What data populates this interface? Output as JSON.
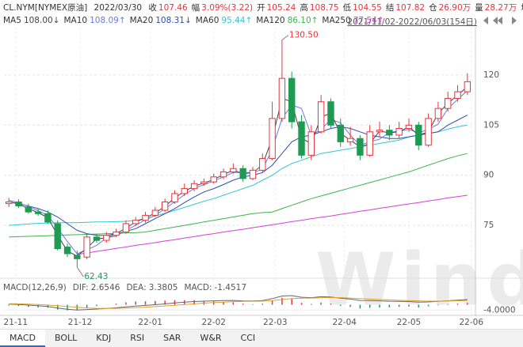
{
  "header": {
    "symbol": "CL.NYM[NYMEX原油]",
    "date": "2022/03/30",
    "quotes": [
      {
        "label": "收",
        "value": "107.46"
      },
      {
        "label": "幅",
        "value": "3.09%(3.22)"
      },
      {
        "label": "开",
        "value": "105.24"
      },
      {
        "label": "高",
        "value": "108.75"
      },
      {
        "label": "低",
        "value": "104.55"
      },
      {
        "label": "结",
        "value": "107.82"
      },
      {
        "label": "仓",
        "value": "26.90万"
      },
      {
        "label": "量",
        "value": "28.27万"
      },
      {
        "label": "增",
        "value": ""
      }
    ],
    "range": "2021/11/02-2022/06/03(154日)"
  },
  "chart_data": {
    "type": "candlestick",
    "watermark": "Wind",
    "xlim": [
      -0.5,
      47.5
    ],
    "xticks": [
      {
        "value": 0.7,
        "label": "21-11"
      },
      {
        "value": 7.3,
        "label": "21-12"
      },
      {
        "value": 14.5,
        "label": "22-01"
      },
      {
        "value": 21.0,
        "label": "22-02"
      },
      {
        "value": 27.3,
        "label": "22-03"
      },
      {
        "value": 34.4,
        "label": "22-04"
      },
      {
        "value": 41.0,
        "label": "22-05"
      },
      {
        "value": 47.4,
        "label": "22-06"
      }
    ],
    "ylim": [
      62,
      133
    ],
    "yticks": [
      75,
      90,
      105,
      120
    ],
    "grid": true,
    "up_color": "#e8343c",
    "down_color": "#1f9a52",
    "open": [
      81.5,
      82,
      80.5,
      79,
      78.5,
      75.5,
      68.5,
      66,
      65.5,
      71.5,
      70.5,
      72,
      73,
      75.5,
      76.5,
      78,
      79.5,
      82,
      84.5,
      86,
      87.5,
      88,
      89.5,
      91,
      92,
      89,
      91.5,
      95,
      107,
      119,
      106,
      96,
      103,
      112,
      105,
      100,
      101,
      96,
      103,
      103.5,
      102,
      104,
      105,
      99,
      107,
      110,
      113,
      115
    ],
    "high": [
      83.2,
      82.8,
      81.5,
      80,
      79.5,
      76.5,
      69.5,
      67.5,
      72.5,
      72.5,
      73,
      74,
      76.5,
      77.5,
      79,
      80.5,
      83,
      85.5,
      87.5,
      88.5,
      89,
      90.5,
      92,
      93.5,
      93,
      92.5,
      96.5,
      112,
      130.5,
      121,
      108,
      105,
      114,
      113,
      107,
      104.5,
      102,
      105,
      106,
      105,
      106,
      107,
      106,
      108.5,
      112,
      115,
      117,
      120.5
    ],
    "low": [
      80.5,
      80.2,
      78.5,
      77.8,
      75.5,
      67.5,
      65.5,
      62.43,
      64.8,
      69.8,
      69.8,
      71.5,
      72.5,
      74.8,
      75.8,
      77.5,
      79,
      81.5,
      83.8,
      85.2,
      86.8,
      87.5,
      88.8,
      90.5,
      88,
      88.5,
      91,
      94.5,
      106,
      104,
      95,
      94.5,
      102.5,
      104,
      98.5,
      98.8,
      94.5,
      95.5,
      101.5,
      100.5,
      101,
      103,
      97.5,
      98.5,
      106,
      109,
      112,
      114
    ],
    "close": [
      82,
      80.8,
      79,
      78.5,
      76,
      68,
      66.5,
      65,
      71.5,
      70.5,
      72,
      73,
      75.5,
      76.5,
      78,
      79.5,
      82,
      84.5,
      86,
      87.5,
      88,
      89.5,
      91,
      92,
      89,
      91.5,
      95,
      107,
      119,
      106,
      96,
      103,
      112,
      105,
      100,
      101,
      96,
      103,
      103.5,
      102,
      104,
      105,
      99,
      107,
      110,
      113,
      115,
      118
    ],
    "annotations": [
      {
        "label": "130.50",
        "value": 130.5,
        "x": 28
      },
      {
        "label": "62.43",
        "value": 62.43,
        "x": 7
      }
    ],
    "series": [
      {
        "name": "MA5",
        "label": "108.00↓",
        "color": "#444444",
        "values": [
          82,
          81.4,
          80,
          78.8,
          77.3,
          72,
          67.3,
          65.8,
          68.2,
          71,
          71.2,
          72.5,
          74.2,
          76,
          77.2,
          78.7,
          80.7,
          83.2,
          85.2,
          86.7,
          87.7,
          88.7,
          90.2,
          91.5,
          90.5,
          90.7,
          93.2,
          101,
          113,
          112,
          101,
          99.5,
          107.5,
          108.5,
          102.5,
          100.5,
          98.5,
          99.5,
          103.2,
          102.7,
          103,
          104.5,
          102,
          103,
          108.5,
          111.5,
          114,
          116.5
        ]
      },
      {
        "name": "MA10",
        "label": "108.09↑",
        "color": "#6b7be0",
        "values": [
          82.5,
          81.8,
          80.6,
          79.4,
          77.9,
          74.2,
          70.2,
          66.5,
          67.7,
          69,
          71.3,
          71.8,
          73.5,
          75,
          76.7,
          78,
          80,
          82,
          84.2,
          86,
          87.2,
          88.3,
          89.5,
          90.8,
          90.8,
          90.8,
          91.8,
          97.8,
          107,
          111,
          110,
          102,
          103.7,
          106.7,
          105.7,
          102,
          99,
          100,
          100.8,
          102.8,
          103.2,
          103.7,
          102.7,
          103.7,
          105.3,
          110,
          112.7,
          115.3
        ]
      },
      {
        "name": "MA20",
        "label": "108.31↓",
        "color": "#2b4fb0",
        "values": [
          82,
          81.5,
          80.8,
          80,
          79,
          77.5,
          75.5,
          73.5,
          72.5,
          72,
          72,
          72.5,
          73.2,
          74,
          75.5,
          77,
          78.5,
          80,
          81.8,
          83.5,
          85,
          86,
          87.2,
          88.5,
          89.5,
          90,
          90.8,
          93,
          96.5,
          100,
          101.5,
          102,
          103,
          104,
          104.5,
          104,
          103,
          102,
          101.5,
          101,
          101,
          101.5,
          102,
          102.5,
          103,
          105,
          106.5,
          108
        ]
      },
      {
        "name": "MA60",
        "label": "95.44↑",
        "color": "#33c4d6",
        "values": [
          75,
          75.2,
          75.4,
          75.6,
          75.7,
          75.8,
          75.8,
          75.8,
          75.9,
          76,
          76,
          76.1,
          76.2,
          76.5,
          77,
          77.8,
          78.6,
          79.5,
          80.4,
          81.3,
          82.2,
          83,
          84,
          85,
          86,
          87,
          88.5,
          90,
          92,
          93.5,
          94.5,
          95.5,
          96.5,
          97,
          97.5,
          98,
          98.5,
          99,
          99.5,
          100,
          100.5,
          101.5,
          102,
          102.5,
          103,
          103.8,
          104.5,
          105
        ]
      },
      {
        "name": "MA120",
        "label": "86.10↑",
        "color": "#3cb44b",
        "values": [
          71.5,
          71.6,
          71.7,
          71.8,
          71.9,
          72,
          72.1,
          72.2,
          72.3,
          72.4,
          72.5,
          72.6,
          72.7,
          72.8,
          73,
          73.5,
          74,
          74.5,
          75,
          75.5,
          76,
          76.5,
          77,
          77.5,
          78,
          78.5,
          78.8,
          79,
          80,
          81,
          82,
          83,
          83.8,
          84.6,
          85.4,
          86.2,
          87,
          87.8,
          88.6,
          89.4,
          90.2,
          91,
          92,
          93,
          94,
          95,
          95.8,
          96.5
        ]
      },
      {
        "name": "MA250",
        "label": "77.54↑",
        "color": "#d43fd4",
        "values": [
          null,
          null,
          null,
          null,
          null,
          null,
          null,
          66.3,
          66.7,
          67.2,
          67.6,
          68.1,
          68.5,
          69,
          69.4,
          69.8,
          70.3,
          70.7,
          71.2,
          71.6,
          72.1,
          72.5,
          73,
          73.4,
          73.8,
          74.3,
          74.7,
          75.2,
          75.6,
          76.1,
          76.5,
          77,
          77.4,
          77.8,
          78.3,
          78.7,
          79.2,
          79.6,
          80.1,
          80.5,
          81,
          81.4,
          81.8,
          82.3,
          82.7,
          83.2,
          83.6,
          84
        ]
      }
    ]
  },
  "macd_panel": {
    "title": "MACD(12,26,9)",
    "readouts": [
      {
        "label": "DIF:",
        "value": "2.6546"
      },
      {
        "label": "DEA:",
        "value": "3.3805"
      },
      {
        "label": "MACD:",
        "value": "-1.4517"
      }
    ],
    "ylim": [
      -5,
      8
    ],
    "yticks": [
      {
        "value": -4,
        "label": "-4.0000"
      }
    ],
    "dif_color": "#666666",
    "dea_color": "#e0a030",
    "dif": [
      0.5,
      0.2,
      -0.3,
      -0.8,
      -1.3,
      -2.5,
      -3.4,
      -4,
      -3.6,
      -3.2,
      -2.8,
      -2.3,
      -1.6,
      -1,
      -0.5,
      0,
      0.6,
      1.3,
      1.9,
      2.4,
      2.7,
      2.9,
      3.1,
      3.2,
      2.9,
      2.8,
      3.1,
      4.6,
      6.5,
      6.8,
      5.6,
      5.3,
      6,
      5.8,
      4.9,
      4.2,
      3.2,
      3.1,
      2.9,
      2.6,
      2.5,
      2.4,
      1.9,
      2.1,
      2.5,
      3,
      3.4,
      3.9
    ],
    "dea": [
      0.8,
      0.7,
      0.5,
      0.2,
      -0.2,
      -0.7,
      -1.3,
      -1.9,
      -2.4,
      -2.7,
      -2.8,
      -2.7,
      -2.5,
      -2.2,
      -1.8,
      -1.4,
      -0.9,
      -0.4,
      0.2,
      0.7,
      1.2,
      1.6,
      2,
      2.3,
      2.5,
      2.6,
      2.7,
      3.1,
      3.9,
      4.6,
      4.9,
      5,
      5.2,
      5.4,
      5.3,
      5,
      4.6,
      4.2,
      3.9,
      3.6,
      3.3,
      3.1,
      2.9,
      2.7,
      2.7,
      2.8,
      3,
      3.2
    ],
    "histogram": [
      -0.6,
      -1,
      -1.6,
      -2,
      -2.2,
      -3.6,
      -4.2,
      -4.2,
      -2.4,
      -1,
      0,
      0.8,
      1.8,
      2.4,
      2.6,
      2.8,
      3,
      3.4,
      3.4,
      3.4,
      3,
      2.6,
      2.2,
      1.8,
      0.8,
      0.4,
      0.8,
      3,
      5.2,
      4.4,
      1.4,
      0.6,
      1.6,
      0.8,
      -0.8,
      -1.6,
      -2.8,
      -2.2,
      -2,
      -2,
      -1.6,
      -1.4,
      -2,
      -1.2,
      -0.4,
      0.4,
      0.8,
      1.4
    ]
  },
  "tabs": [
    "MACD",
    "BOLL",
    "KDJ",
    "RSI",
    "SAR",
    "W&R",
    "CCI"
  ]
}
